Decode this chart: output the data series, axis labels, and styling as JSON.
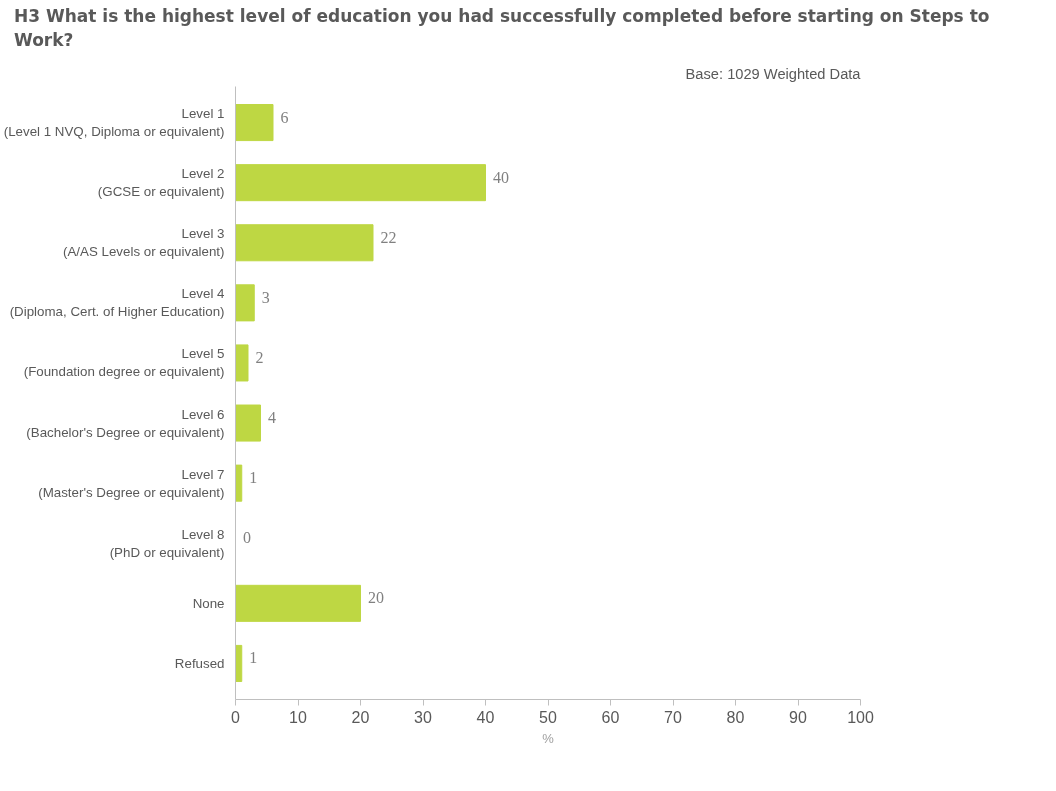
{
  "chart_data": {
    "type": "bar",
    "orientation": "horizontal",
    "title": "H3 What is the highest level of education you had successfully completed before starting on Steps to Work?",
    "subtitle": "Base: 1029 Weighted Data",
    "xlabel": "%",
    "categories": [
      "Level 1\n(Level 1 NVQ, Diploma or equivalent)",
      "Level 2\n(GCSE or equivalent)",
      "Level 3\n(A/AS Levels or equivalent)",
      "Level 4\n(Diploma, Cert. of Higher Education)",
      "Level 5\n(Foundation degree or equivalent)",
      "Level 6\n(Bachelor's Degree or equivalent)",
      "Level 7\n(Master's Degree or equivalent)",
      "Level 8\n(PhD or equivalent)",
      "None",
      "Refused"
    ],
    "values": [
      6,
      40,
      22,
      3,
      2,
      4,
      1,
      0,
      20,
      1
    ],
    "color": "#bed743",
    "xlim": [
      0,
      100
    ],
    "xticks": [
      0,
      10,
      20,
      30,
      40,
      50,
      60,
      70,
      80,
      90,
      100
    ],
    "grid": false,
    "data_labels": true
  }
}
